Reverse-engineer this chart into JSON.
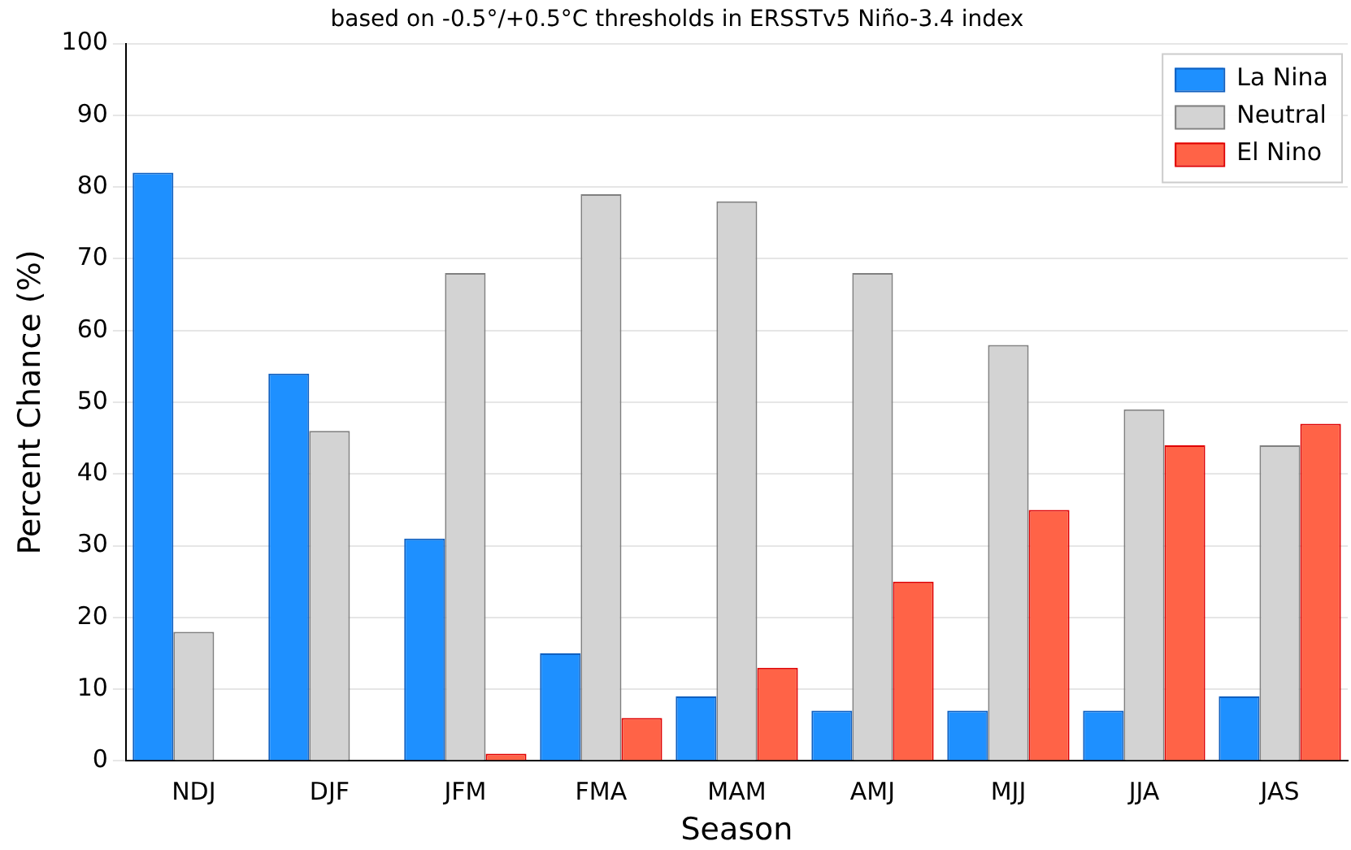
{
  "chart_data": {
    "type": "bar",
    "subtitle": "based on -0.5°/+0.5°C thresholds in ERSSTv5 Niño-3.4 index",
    "xlabel": "Season",
    "ylabel": "Percent Chance (%)",
    "categories": [
      "NDJ",
      "DJF",
      "JFM",
      "FMA",
      "MAM",
      "AMJ",
      "MJJ",
      "JJA",
      "JAS"
    ],
    "series": [
      {
        "name": "La Nina",
        "color": "#1e90ff",
        "values": [
          82,
          54,
          31,
          15,
          9,
          7,
          7,
          7,
          9
        ]
      },
      {
        "name": "Neutral",
        "color": "#d3d3d3",
        "values": [
          18,
          46,
          68,
          79,
          78,
          68,
          58,
          49,
          44
        ]
      },
      {
        "name": "El Nino",
        "color": "#ff6347",
        "values": [
          0,
          0,
          1,
          6,
          13,
          25,
          35,
          44,
          47
        ]
      }
    ],
    "ylim": [
      0,
      100
    ],
    "yticks": [
      0,
      10,
      20,
      30,
      40,
      50,
      60,
      70,
      80,
      90,
      100
    ],
    "grid": "y",
    "legend": "top right"
  }
}
